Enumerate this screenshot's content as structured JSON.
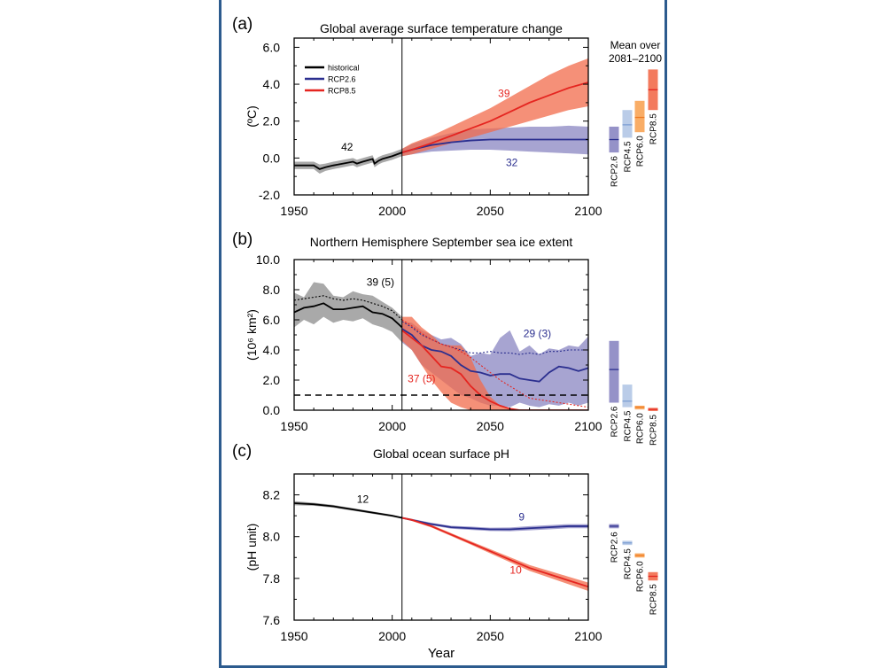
{
  "colors": {
    "historical": "#000000",
    "historical_band": "#9a9a9a",
    "rcp26": "#2b2f8f",
    "rcp26_band": "#8a86c2",
    "rcp45": "#b3c6e6",
    "rcp45_line": "#7d9fd3",
    "rcp60": "#f8a455",
    "rcp60_line": "#ee7a22",
    "rcp85": "#e52520",
    "rcp85_band": "#f26b4b",
    "frame": "#2c5b8e"
  },
  "mean_bars_header": [
    "Mean over",
    "2081–2100"
  ],
  "chart_data": [
    {
      "panel": "(a)",
      "type": "line",
      "title": "Global average surface temperature change",
      "ylabel": "(ºC)",
      "xlabel": "",
      "xlim": [
        1950,
        2100
      ],
      "ylim": [
        -2.0,
        6.5
      ],
      "xticks": [
        "1950",
        "2000",
        "2050",
        "2100"
      ],
      "yticks": [
        "-2.0",
        "0.0",
        "2.0",
        "4.0",
        "6.0"
      ],
      "legend": [
        "historical",
        "RCP2.6",
        "RCP8.5"
      ],
      "legend_position": "top-left",
      "divider_year": 2005,
      "series": [
        {
          "name": "historical",
          "x": [
            1950,
            1955,
            1960,
            1963,
            1966,
            1970,
            1975,
            1980,
            1982,
            1985,
            1990,
            1991,
            1993,
            1995,
            2000,
            2005
          ],
          "values": [
            -0.4,
            -0.4,
            -0.4,
            -0.6,
            -0.5,
            -0.4,
            -0.3,
            -0.2,
            -0.3,
            -0.2,
            -0.05,
            -0.3,
            -0.15,
            -0.05,
            0.1,
            0.3
          ],
          "lower": [
            -0.6,
            -0.6,
            -0.6,
            -0.85,
            -0.7,
            -0.6,
            -0.5,
            -0.4,
            -0.5,
            -0.4,
            -0.25,
            -0.5,
            -0.35,
            -0.25,
            -0.1,
            0.1
          ],
          "upper": [
            -0.2,
            -0.2,
            -0.2,
            -0.35,
            -0.3,
            -0.2,
            -0.1,
            0.0,
            -0.1,
            0.0,
            0.15,
            -0.1,
            0.05,
            0.15,
            0.3,
            0.5
          ]
        },
        {
          "name": "RCP2.6",
          "x": [
            2005,
            2010,
            2020,
            2030,
            2040,
            2050,
            2060,
            2070,
            2080,
            2090,
            2100
          ],
          "values": [
            0.3,
            0.45,
            0.7,
            0.85,
            0.95,
            1.0,
            1.0,
            1.0,
            1.0,
            1.0,
            1.0
          ],
          "lower": [
            0.1,
            0.2,
            0.35,
            0.4,
            0.45,
            0.45,
            0.4,
            0.35,
            0.3,
            0.25,
            0.2
          ],
          "upper": [
            0.5,
            0.75,
            1.1,
            1.35,
            1.55,
            1.6,
            1.65,
            1.7,
            1.7,
            1.75,
            1.7
          ]
        },
        {
          "name": "RCP8.5",
          "x": [
            2005,
            2010,
            2020,
            2030,
            2040,
            2050,
            2060,
            2070,
            2080,
            2090,
            2100
          ],
          "values": [
            0.3,
            0.45,
            0.8,
            1.2,
            1.6,
            2.0,
            2.5,
            3.0,
            3.4,
            3.8,
            4.1
          ],
          "lower": [
            0.1,
            0.2,
            0.5,
            0.8,
            1.1,
            1.4,
            1.7,
            2.0,
            2.3,
            2.6,
            2.8
          ],
          "upper": [
            0.5,
            0.8,
            1.2,
            1.7,
            2.2,
            2.7,
            3.3,
            3.9,
            4.5,
            5.0,
            5.4
          ]
        }
      ],
      "annotations": [
        {
          "text": "42",
          "x": 1977,
          "y": 0.6,
          "color": "historical"
        },
        {
          "text": "39",
          "x": 2057,
          "y": 3.5,
          "color": "rcp85"
        },
        {
          "text": "32",
          "x": 2061,
          "y": -0.25,
          "color": "rcp26"
        }
      ],
      "mean_bars": [
        {
          "name": "RCP2.6",
          "mean": 1.0,
          "low": 0.3,
          "high": 1.7
        },
        {
          "name": "RCP4.5",
          "mean": 1.8,
          "low": 1.1,
          "high": 2.6
        },
        {
          "name": "RCP6.0",
          "mean": 2.2,
          "low": 1.4,
          "high": 3.1
        },
        {
          "name": "RCP8.5",
          "mean": 3.7,
          "low": 2.6,
          "high": 4.8
        }
      ]
    },
    {
      "panel": "(b)",
      "type": "line",
      "title": "Northern Hemisphere September sea ice extent",
      "ylabel": "(10⁶ km²)",
      "xlabel": "",
      "xlim": [
        1950,
        2100
      ],
      "ylim": [
        0.0,
        10.0
      ],
      "xticks": [
        "1950",
        "2000",
        "2050",
        "2100"
      ],
      "yticks": [
        "0.0",
        "2.0",
        "4.0",
        "6.0",
        "8.0",
        "10.0"
      ],
      "divider_year": 2005,
      "threshold": 1.0,
      "series": [
        {
          "name": "historical",
          "x": [
            1950,
            1955,
            1960,
            1965,
            1970,
            1975,
            1980,
            1985,
            1990,
            1995,
            2000,
            2005
          ],
          "values": [
            6.5,
            6.8,
            6.9,
            7.1,
            6.7,
            6.7,
            6.8,
            6.9,
            6.5,
            6.4,
            6.1,
            5.5
          ],
          "lower": [
            5.5,
            6.0,
            5.7,
            6.2,
            5.8,
            6.0,
            5.9,
            6.1,
            5.7,
            5.5,
            5.2,
            4.5
          ],
          "upper": [
            7.8,
            7.5,
            8.5,
            8.4,
            7.6,
            7.5,
            7.9,
            7.7,
            7.6,
            7.2,
            6.8,
            6.2
          ],
          "subset_mean": [
            7.3,
            7.4,
            7.5,
            7.6,
            7.4,
            7.3,
            7.4,
            7.3,
            7.1,
            6.9,
            6.6,
            6.0
          ]
        },
        {
          "name": "RCP2.6",
          "x": [
            2005,
            2010,
            2015,
            2020,
            2025,
            2030,
            2035,
            2040,
            2045,
            2050,
            2055,
            2060,
            2065,
            2070,
            2075,
            2080,
            2085,
            2090,
            2095,
            2100
          ],
          "values": [
            5.4,
            5.0,
            4.3,
            4.0,
            3.9,
            3.6,
            3.0,
            2.6,
            2.5,
            2.3,
            2.4,
            2.4,
            2.1,
            2.0,
            1.9,
            2.5,
            2.9,
            2.8,
            2.6,
            2.8
          ],
          "lower": [
            4.5,
            4.0,
            3.0,
            2.5,
            2.0,
            1.5,
            1.0,
            0.8,
            0.5,
            0.3,
            0.3,
            0.2,
            0.5,
            0.3,
            0.2,
            0.4,
            0.3,
            0.5,
            0.3,
            0.5
          ],
          "upper": [
            5.9,
            5.8,
            5.3,
            5.0,
            4.7,
            4.8,
            4.4,
            3.6,
            3.8,
            3.7,
            4.8,
            5.3,
            3.9,
            4.3,
            3.7,
            4.1,
            4.0,
            4.3,
            4.2,
            4.9
          ],
          "subset_mean": [
            5.9,
            5.5,
            5.0,
            4.7,
            4.4,
            4.2,
            4.0,
            3.8,
            3.8,
            3.9,
            3.8,
            3.8,
            3.7,
            3.8,
            3.7,
            3.9,
            3.9,
            4.0,
            4.0,
            4.0
          ]
        },
        {
          "name": "RCP8.5",
          "x": [
            2005,
            2010,
            2015,
            2020,
            2025,
            2030,
            2035,
            2040,
            2045,
            2050,
            2055,
            2060,
            2065,
            2070,
            2100
          ],
          "values": [
            5.3,
            4.8,
            4.3,
            3.6,
            2.9,
            2.8,
            2.4,
            1.6,
            1.0,
            0.6,
            0.3,
            0.1,
            0.0,
            0.0,
            0.0
          ],
          "lower": [
            4.6,
            4.0,
            3.0,
            2.0,
            1.2,
            0.5,
            0.2,
            0.0,
            0.0,
            0.0,
            0.0,
            0.0,
            0.0,
            0.0,
            0.0
          ],
          "upper": [
            6.2,
            6.2,
            5.5,
            5.0,
            4.4,
            4.3,
            4.3,
            3.5,
            2.0,
            0.9,
            0.3,
            0.1,
            0.05,
            0.0,
            0.0
          ],
          "subset_mean": [
            6.0,
            5.6,
            5.1,
            4.7,
            4.4,
            4.2,
            3.9,
            3.5,
            3.0,
            2.5,
            2.0,
            1.6,
            1.2,
            0.8,
            0.2
          ]
        }
      ],
      "annotations": [
        {
          "text": "39 (5)",
          "x": 1994,
          "y": 8.5,
          "color": "historical"
        },
        {
          "text": "29 (3)",
          "x": 2074,
          "y": 5.1,
          "color": "rcp26"
        },
        {
          "text": "37 (5)",
          "x": 2015,
          "y": 2.1,
          "color": "rcp85"
        }
      ],
      "mean_bars": [
        {
          "name": "RCP2.6",
          "mean": 2.7,
          "low": 0.5,
          "high": 4.6
        },
        {
          "name": "RCP4.5",
          "mean": 0.6,
          "low": 0.2,
          "high": 1.7
        },
        {
          "name": "RCP6.0",
          "mean": 0.2,
          "low": 0.05,
          "high": 0.3
        },
        {
          "name": "RCP8.5",
          "mean": 0.05,
          "low": 0.0,
          "high": 0.1
        }
      ]
    },
    {
      "panel": "(c)",
      "type": "line",
      "title": "Global ocean surface pH",
      "ylabel": "(pH unit)",
      "xlabel": "Year",
      "xlim": [
        1950,
        2100
      ],
      "ylim": [
        7.6,
        8.3
      ],
      "xticks": [
        "1950",
        "2000",
        "2050",
        "2100"
      ],
      "yticks": [
        "7.6",
        "7.8",
        "8.0",
        "8.2"
      ],
      "divider_year": 2005,
      "series": [
        {
          "name": "historical",
          "x": [
            1950,
            1960,
            1970,
            1980,
            1990,
            2000,
            2005
          ],
          "values": [
            8.16,
            8.155,
            8.145,
            8.13,
            8.115,
            8.1,
            8.09
          ],
          "lower": [
            8.15,
            8.148,
            8.138,
            8.124,
            8.109,
            8.095,
            8.086
          ],
          "upper": [
            8.17,
            8.162,
            8.152,
            8.136,
            8.121,
            8.105,
            8.094
          ]
        },
        {
          "name": "RCP2.6",
          "x": [
            2005,
            2010,
            2020,
            2030,
            2040,
            2050,
            2060,
            2070,
            2080,
            2090,
            2100
          ],
          "values": [
            8.09,
            8.08,
            8.06,
            8.045,
            8.04,
            8.035,
            8.035,
            8.04,
            8.045,
            8.05,
            8.05
          ],
          "lower": [
            8.086,
            8.075,
            8.054,
            8.038,
            8.032,
            8.027,
            8.026,
            8.03,
            8.035,
            8.04,
            8.04
          ],
          "upper": [
            8.094,
            8.085,
            8.066,
            8.052,
            8.048,
            8.043,
            8.044,
            8.05,
            8.055,
            8.06,
            8.06
          ]
        },
        {
          "name": "RCP8.5",
          "x": [
            2005,
            2010,
            2020,
            2030,
            2040,
            2050,
            2060,
            2070,
            2080,
            2090,
            2100
          ],
          "values": [
            8.09,
            8.08,
            8.05,
            8.01,
            7.97,
            7.93,
            7.89,
            7.85,
            7.82,
            7.79,
            7.76
          ],
          "lower": [
            8.086,
            8.075,
            8.044,
            8.003,
            7.962,
            7.92,
            7.878,
            7.836,
            7.804,
            7.772,
            7.74
          ],
          "upper": [
            8.094,
            8.085,
            8.056,
            8.017,
            7.978,
            7.94,
            7.902,
            7.864,
            7.836,
            7.808,
            7.78
          ]
        }
      ],
      "annotations": [
        {
          "text": "12",
          "x": 1985,
          "y": 8.18,
          "color": "historical"
        },
        {
          "text": "9",
          "x": 2066,
          "y": 8.095,
          "color": "rcp26"
        },
        {
          "text": "10",
          "x": 2063,
          "y": 7.84,
          "color": "rcp85"
        }
      ],
      "mean_bars": [
        {
          "name": "RCP2.6",
          "mean": 8.05,
          "low": 8.04,
          "high": 8.06
        },
        {
          "name": "RCP4.5",
          "mean": 7.97,
          "low": 7.96,
          "high": 7.98
        },
        {
          "name": "RCP6.0",
          "mean": 7.91,
          "low": 7.9,
          "high": 7.92
        },
        {
          "name": "RCP8.5",
          "mean": 7.81,
          "low": 7.79,
          "high": 7.83
        }
      ]
    }
  ]
}
